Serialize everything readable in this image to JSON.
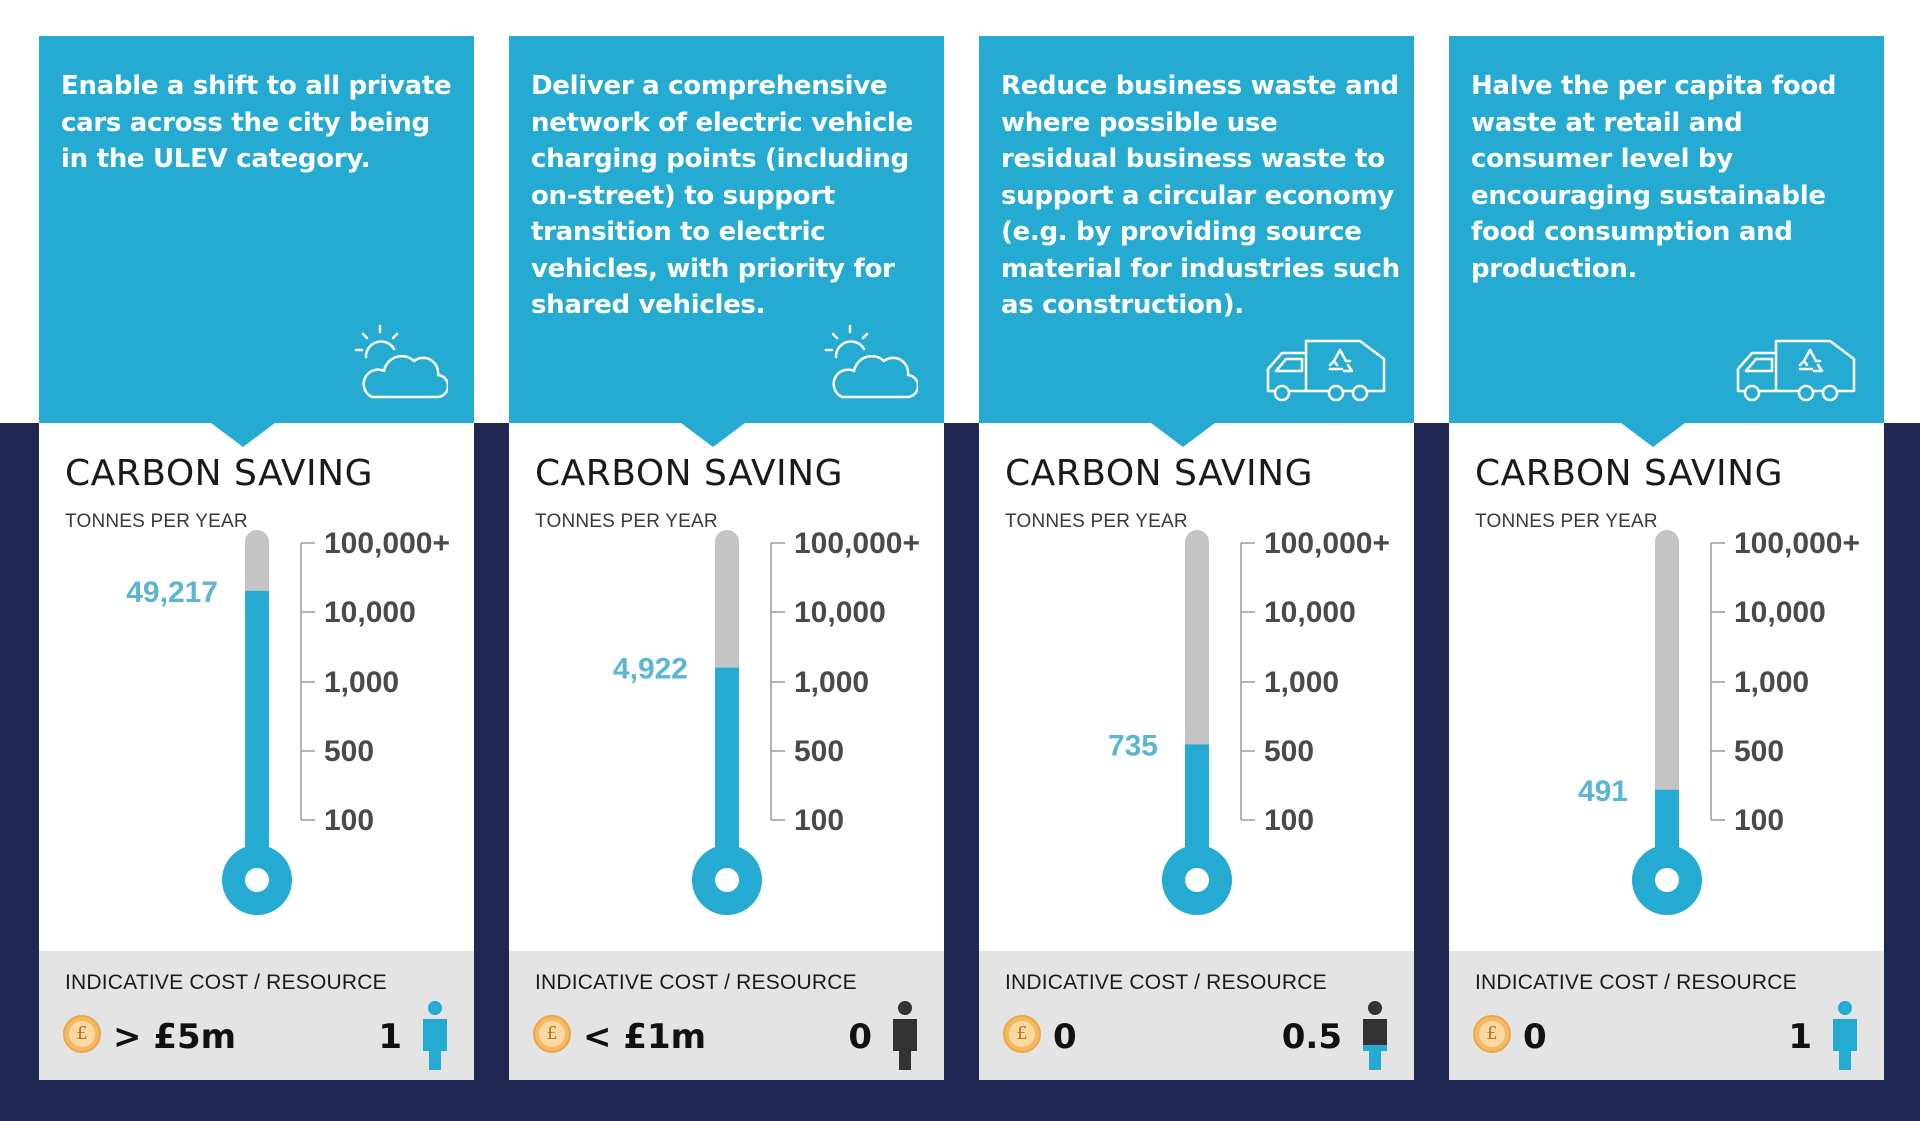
{
  "colors": {
    "accent": "#25abd2",
    "navy": "#1f2752",
    "mercury_empty": "#c4c4c4",
    "value_text": "#5ab6d4",
    "coin": "#f5b962"
  },
  "common": {
    "carbon_title": "CARBON SAVING",
    "carbon_subtitle": "TONNES PER YEAR",
    "scale": [
      "100,000+",
      "10,000",
      "1,000",
      "500",
      "100"
    ],
    "cost_title": "INDICATIVE COST / RESOURCE",
    "currency_symbol": "£"
  },
  "cards": [
    {
      "description": "Enable a shift to all private cars across the city being in the ULEV category.",
      "icon": "sun-cloud-icon",
      "carbon_value": "49,217",
      "fill_fraction": 0.86,
      "cost": "> £5m",
      "resource": "1",
      "resource_fill": "full"
    },
    {
      "description": "Deliver a comprehensive network of electric vehicle charging points (including on-street) to support transition to electric vehicles, with priority for shared vehicles.",
      "icon": "sun-cloud-icon",
      "carbon_value": "4,922",
      "fill_fraction": 0.64,
      "cost": "< £1m",
      "resource": "0",
      "resource_fill": "empty"
    },
    {
      "description": "Reduce business waste and where possible use residual business waste to support a circular economy (e.g. by providing source material for industries such as construction).",
      "icon": "recycling-truck-icon",
      "carbon_value": "735",
      "fill_fraction": 0.42,
      "cost": "0",
      "resource": "0.5",
      "resource_fill": "half"
    },
    {
      "description": "Halve the per capita food waste at retail and consumer level by encouraging sustainable food consumption and production.",
      "icon": "recycling-truck-icon",
      "carbon_value": "491",
      "fill_fraction": 0.29,
      "cost": "0",
      "resource": "1",
      "resource_fill": "full"
    }
  ]
}
